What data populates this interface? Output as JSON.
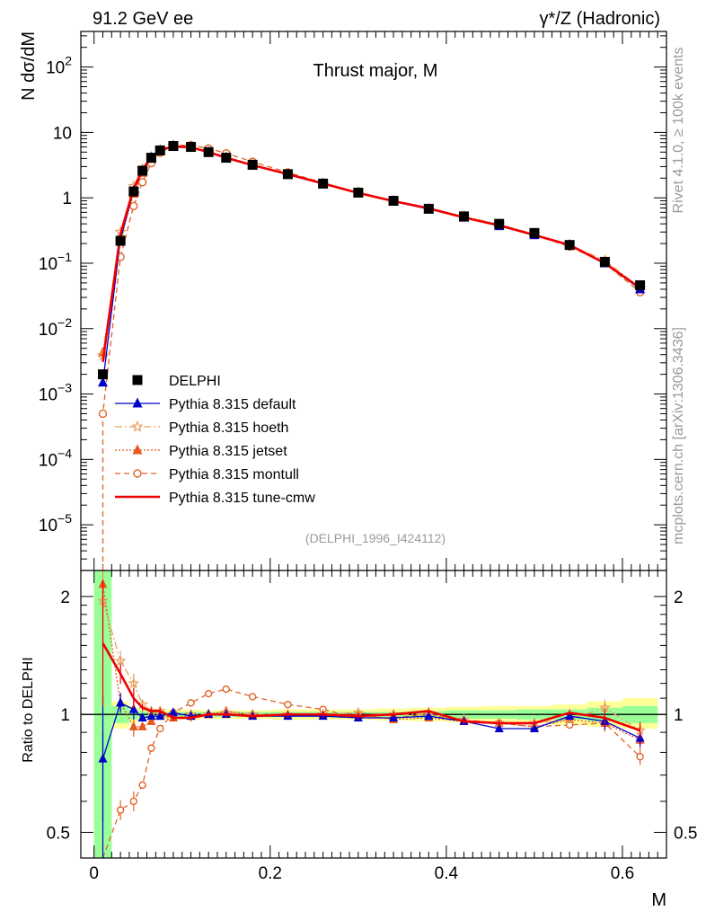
{
  "header": {
    "left": "91.2 GeV ee",
    "right": "γ*/Z (Hadronic)"
  },
  "side_texts": {
    "rivet": "Rivet 4.1.0, ≥ 100k events",
    "mcplots": "mcplots.cern.ch [arXiv:1306.3436]"
  },
  "colors": {
    "data": "#000000",
    "default": "#0000cc",
    "hoeth": "#e8a060",
    "jetset": "#e8581c",
    "montull": "#e06428",
    "tune_cmw": "#ee0000",
    "band_yellow": "#ffff99",
    "band_green": "#99ff99"
  },
  "chart_data": [
    {
      "type": "line",
      "title": "Thrust major, M",
      "ylabel": "N  dσ/dM",
      "xlabel": "M",
      "yscale": "log",
      "ylim": [
        2e-06,
        350
      ],
      "xlim": [
        -0.015,
        0.65
      ],
      "reference": "(DELPHI_1996_I424112)",
      "yticks": [
        {
          "v": 1e-05,
          "base": "10",
          "exp": "−5"
        },
        {
          "v": 0.0001,
          "base": "10",
          "exp": "−4"
        },
        {
          "v": 0.001,
          "base": "10",
          "exp": "−3"
        },
        {
          "v": 0.01,
          "base": "10",
          "exp": "−2"
        },
        {
          "v": 0.1,
          "base": "10",
          "exp": "−1"
        },
        {
          "v": 1,
          "base": "1",
          "exp": ""
        },
        {
          "v": 10,
          "base": "10",
          "exp": ""
        },
        {
          "v": 100,
          "base": "10",
          "exp": "2"
        }
      ],
      "x": [
        0.01,
        0.03,
        0.045,
        0.055,
        0.065,
        0.075,
        0.09,
        0.11,
        0.13,
        0.15,
        0.18,
        0.22,
        0.26,
        0.3,
        0.34,
        0.38,
        0.42,
        0.46,
        0.5,
        0.54,
        0.58,
        0.62
      ],
      "legend": {
        "data": "DELPHI",
        "default": "Pythia 8.315 default",
        "hoeth": "Pythia 8.315 hoeth",
        "jetset": "Pythia 8.315 jetset",
        "montull": "Pythia 8.315 montull",
        "tune_cmw": "Pythia 8.315 tune-cmw"
      },
      "series": [
        {
          "name": "DELPHI",
          "key": "data",
          "values": [
            0.002,
            0.22,
            1.25,
            2.6,
            4.1,
            5.3,
            6.2,
            6.0,
            5.0,
            4.1,
            3.2,
            2.3,
            1.65,
            1.2,
            0.9,
            0.68,
            0.52,
            0.4,
            0.29,
            0.19,
            0.105,
            0.046
          ]
        },
        {
          "name": "Pythia 8.315 default",
          "key": "default",
          "values": [
            0.0015,
            0.23,
            1.3,
            2.55,
            4.1,
            5.3,
            6.25,
            5.95,
            5.0,
            4.1,
            3.15,
            2.25,
            1.63,
            1.19,
            0.88,
            0.67,
            0.5,
            0.37,
            0.27,
            0.19,
            0.1,
            0.04
          ]
        },
        {
          "name": "Pythia 8.315 hoeth",
          "key": "hoeth",
          "values": [
            0.0039,
            0.3,
            1.5,
            2.75,
            4.2,
            5.4,
            6.2,
            6.05,
            5.0,
            4.15,
            3.2,
            2.3,
            1.65,
            1.22,
            0.9,
            0.68,
            0.52,
            0.39,
            0.28,
            0.19,
            0.11,
            0.042
          ]
        },
        {
          "name": "Pythia 8.315 jetset",
          "key": "jetset",
          "values": [
            0.0043,
            0.235,
            1.16,
            2.42,
            3.95,
            5.3,
            6.1,
            5.9,
            5.0,
            4.2,
            3.2,
            2.3,
            1.65,
            1.2,
            0.88,
            0.67,
            0.5,
            0.38,
            0.27,
            0.19,
            0.1,
            0.04
          ]
        },
        {
          "name": "Pythia 8.315 montull",
          "key": "montull",
          "values": [
            0.0005,
            0.125,
            0.75,
            1.73,
            3.4,
            4.9,
            6.3,
            6.4,
            5.7,
            4.8,
            3.55,
            2.45,
            1.7,
            1.18,
            0.88,
            0.68,
            0.5,
            0.38,
            0.27,
            0.18,
            0.1,
            0.036
          ]
        },
        {
          "name": "Pythia 8.315 tune-cmw",
          "key": "tune_cmw",
          "values": [
            0.0031,
            0.28,
            1.38,
            2.7,
            4.2,
            5.4,
            6.1,
            5.9,
            5.0,
            4.1,
            3.15,
            2.3,
            1.65,
            1.19,
            0.89,
            0.69,
            0.5,
            0.38,
            0.27,
            0.19,
            0.1,
            0.042
          ]
        }
      ]
    },
    {
      "type": "line",
      "ylabel": "Ratio to DELPHI",
      "xlabel": "M",
      "yscale": "log",
      "ylim": [
        0.43,
        2.33
      ],
      "xlim": [
        -0.015,
        0.65
      ],
      "yticks": [
        0.5,
        1,
        2
      ],
      "xticks": [
        0,
        0.2,
        0.4,
        0.6
      ],
      "x": [
        0.01,
        0.03,
        0.045,
        0.055,
        0.065,
        0.075,
        0.09,
        0.11,
        0.13,
        0.15,
        0.18,
        0.22,
        0.26,
        0.3,
        0.34,
        0.38,
        0.42,
        0.46,
        0.5,
        0.54,
        0.58,
        0.62
      ],
      "series": [
        {
          "name": "Pythia 8.315 default",
          "key": "default",
          "values": [
            0.77,
            1.07,
            1.03,
            0.98,
            0.99,
            0.99,
            1.01,
            0.99,
            1.0,
            1.0,
            0.99,
            0.99,
            0.99,
            0.98,
            0.98,
            0.99,
            0.96,
            0.92,
            0.92,
            0.99,
            0.96,
            0.87
          ]
        },
        {
          "name": "Pythia 8.315 hoeth",
          "key": "hoeth",
          "values": [
            1.95,
            1.37,
            1.2,
            1.06,
            1.02,
            1.02,
            1.0,
            1.0,
            1.0,
            1.01,
            1.0,
            1.0,
            1.0,
            1.01,
            1.0,
            1.0,
            0.97,
            0.95,
            0.95,
            0.97,
            1.04,
            0.91
          ]
        },
        {
          "name": "Pythia 8.315 jetset",
          "key": "jetset",
          "values": [
            2.15,
            1.07,
            0.93,
            0.93,
            0.96,
            0.99,
            0.98,
            0.99,
            1.0,
            1.02,
            1.0,
            1.0,
            1.0,
            1.0,
            0.97,
            0.98,
            0.96,
            0.95,
            0.93,
            0.97,
            0.95,
            0.86
          ]
        },
        {
          "name": "Pythia 8.315 montull",
          "key": "montull",
          "values": [
            0.25,
            0.57,
            0.6,
            0.66,
            0.82,
            0.92,
            1.01,
            1.07,
            1.13,
            1.16,
            1.11,
            1.06,
            1.03,
            0.98,
            0.98,
            1.0,
            0.96,
            0.95,
            0.93,
            0.94,
            0.95,
            0.78
          ]
        },
        {
          "name": "Pythia 8.315 tune-cmw",
          "key": "tune_cmw",
          "values": [
            1.52,
            1.27,
            1.1,
            1.04,
            1.02,
            1.02,
            0.98,
            0.98,
            1.0,
            1.0,
            0.99,
            1.0,
            1.0,
            0.99,
            1.0,
            1.02,
            0.96,
            0.95,
            0.95,
            1.01,
            0.98,
            0.91
          ]
        }
      ],
      "band": {
        "x_edges": [
          0.0,
          0.02,
          0.04,
          0.05,
          0.06,
          0.07,
          0.08,
          0.1,
          0.12,
          0.14,
          0.16,
          0.2,
          0.24,
          0.28,
          0.32,
          0.36,
          0.4,
          0.44,
          0.48,
          0.52,
          0.56,
          0.6,
          0.64
        ],
        "green_lo": [
          0.42,
          0.95,
          0.97,
          0.98,
          0.98,
          0.98,
          0.985,
          0.985,
          0.985,
          0.985,
          0.985,
          0.985,
          0.985,
          0.985,
          0.985,
          0.98,
          0.975,
          0.975,
          0.97,
          0.97,
          0.96,
          0.95
        ],
        "green_hi": [
          2.33,
          1.05,
          1.03,
          1.02,
          1.02,
          1.02,
          1.015,
          1.015,
          1.015,
          1.015,
          1.015,
          1.015,
          1.015,
          1.015,
          1.015,
          1.02,
          1.025,
          1.025,
          1.03,
          1.03,
          1.04,
          1.05
        ],
        "yellow_lo": [
          0.42,
          0.92,
          0.95,
          0.97,
          0.97,
          0.97,
          0.97,
          0.97,
          0.975,
          0.975,
          0.975,
          0.97,
          0.97,
          0.97,
          0.965,
          0.96,
          0.955,
          0.95,
          0.95,
          0.94,
          0.93,
          0.92
        ],
        "yellow_hi": [
          2.33,
          1.08,
          1.05,
          1.03,
          1.03,
          1.03,
          1.03,
          1.03,
          1.025,
          1.025,
          1.025,
          1.03,
          1.03,
          1.03,
          1.035,
          1.04,
          1.045,
          1.05,
          1.05,
          1.06,
          1.08,
          1.1
        ]
      }
    }
  ]
}
